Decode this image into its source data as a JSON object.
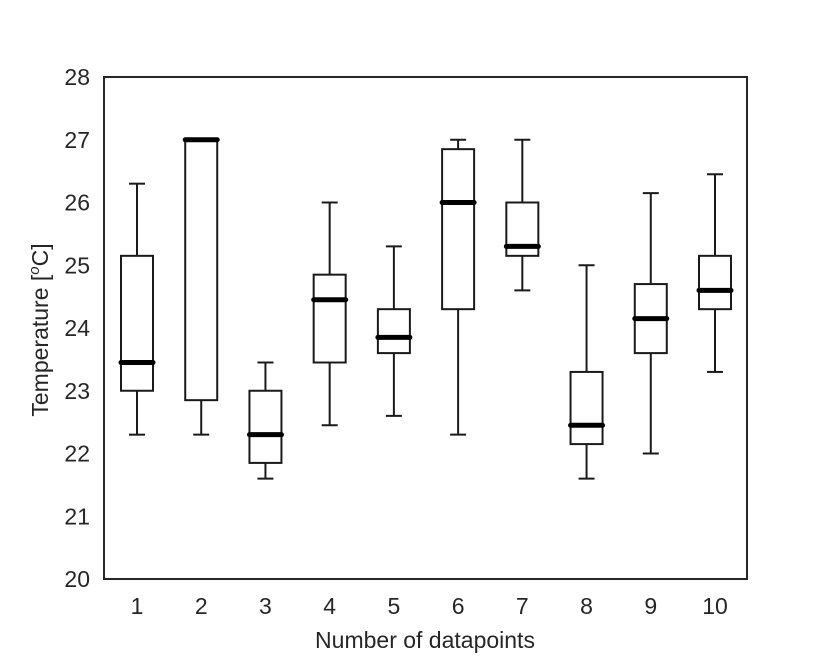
{
  "chart_data": {
    "type": "box",
    "xlabel": "Number of datapoints",
    "ylabel_main": "Temperature [",
    "ylabel_sup": "o",
    "ylabel_tail": "C]",
    "ylim": [
      20,
      28
    ],
    "yticks": [
      20,
      21,
      22,
      23,
      24,
      25,
      26,
      27,
      28
    ],
    "grid": false,
    "categories": [
      "1",
      "2",
      "3",
      "4",
      "5",
      "6",
      "7",
      "8",
      "9",
      "10"
    ],
    "boxes": [
      {
        "whisker_low": 22.3,
        "q1": 23.0,
        "median": 23.45,
        "q3": 25.15,
        "whisker_high": 26.3
      },
      {
        "whisker_low": 22.3,
        "q1": 22.85,
        "median": 27.0,
        "q3": 27.0,
        "whisker_high": 27.0
      },
      {
        "whisker_low": 21.6,
        "q1": 21.85,
        "median": 22.3,
        "q3": 23.0,
        "whisker_high": 23.45
      },
      {
        "whisker_low": 22.45,
        "q1": 23.45,
        "median": 24.45,
        "q3": 24.85,
        "whisker_high": 26.0
      },
      {
        "whisker_low": 22.6,
        "q1": 23.6,
        "median": 23.85,
        "q3": 24.3,
        "whisker_high": 25.3
      },
      {
        "whisker_low": 22.3,
        "q1": 24.3,
        "median": 26.0,
        "q3": 26.85,
        "whisker_high": 27.0
      },
      {
        "whisker_low": 24.6,
        "q1": 25.15,
        "median": 25.3,
        "q3": 26.0,
        "whisker_high": 27.0
      },
      {
        "whisker_low": 21.6,
        "q1": 22.15,
        "median": 22.45,
        "q3": 23.3,
        "whisker_high": 25.0
      },
      {
        "whisker_low": 22.0,
        "q1": 23.6,
        "median": 24.15,
        "q3": 24.7,
        "whisker_high": 26.15
      },
      {
        "whisker_low": 23.3,
        "q1": 24.3,
        "median": 24.6,
        "q3": 25.15,
        "whisker_high": 26.45
      }
    ],
    "colors": {
      "line": "#1a1a1a",
      "median": "#000000",
      "frame": "#262626",
      "text": "#262626"
    }
  }
}
